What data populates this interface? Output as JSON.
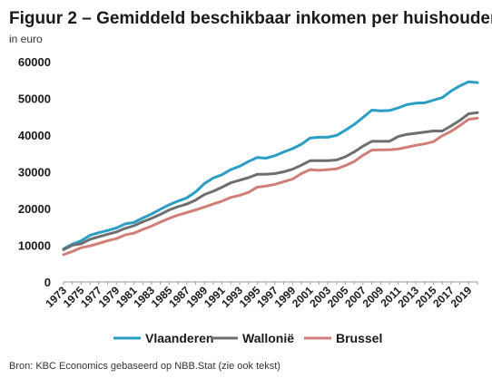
{
  "figure": {
    "title": "Figuur 2 – Gemiddeld beschikbaar inkomen per huishouden",
    "subtitle": "in euro",
    "source": "Bron: KBC Economics gebaseerd op NBB.Stat (zie ook tekst)"
  },
  "chart_data": {
    "type": "line",
    "title": "Figuur 2 – Gemiddeld beschikbaar inkomen per huishouden",
    "subtitle": "in euro",
    "xlabel": "",
    "ylabel": "",
    "x": [
      1973,
      1974,
      1975,
      1976,
      1977,
      1978,
      1979,
      1980,
      1981,
      1982,
      1983,
      1984,
      1985,
      1986,
      1987,
      1988,
      1989,
      1990,
      1991,
      1992,
      1993,
      1994,
      1995,
      1996,
      1997,
      1998,
      1999,
      2000,
      2001,
      2002,
      2003,
      2004,
      2005,
      2006,
      2007,
      2008,
      2009,
      2010,
      2011,
      2012,
      2013,
      2014,
      2015,
      2016,
      2017,
      2018,
      2019,
      2020
    ],
    "x_tick_labels": [
      "1973",
      "1975",
      "1977",
      "1979",
      "1981",
      "1983",
      "1985",
      "1987",
      "1989",
      "1991",
      "1993",
      "1995",
      "1997",
      "1999",
      "2001",
      "2003",
      "2005",
      "2007",
      "2009",
      "2011",
      "2013",
      "2015",
      "2017",
      "2019"
    ],
    "ylim": [
      0,
      60000
    ],
    "y_ticks": [
      0,
      10000,
      20000,
      30000,
      40000,
      50000,
      60000
    ],
    "y_tick_labels": [
      "0",
      "10000",
      "20000",
      "30000",
      "40000",
      "50000",
      "60000"
    ],
    "grid": false,
    "legend_position": "bottom",
    "series": [
      {
        "name": "Vlaanderen",
        "color": "#2a9ec4",
        "values": [
          9000,
          10300,
          11200,
          12700,
          13400,
          14000,
          14700,
          15800,
          16200,
          17400,
          18500,
          19800,
          21000,
          22000,
          22900,
          24500,
          26800,
          28300,
          29200,
          30600,
          31500,
          32800,
          33900,
          33700,
          34400,
          35400,
          36300,
          37500,
          39200,
          39400,
          39400,
          39900,
          41300,
          42900,
          44800,
          46800,
          46600,
          46700,
          47400,
          48300,
          48700,
          48800,
          49500,
          50200,
          52000,
          53400,
          54500,
          54300
        ]
      },
      {
        "name": "Wallonië",
        "color": "#6d6e70",
        "values": [
          8800,
          10000,
          10400,
          11600,
          12300,
          13000,
          13600,
          14600,
          15300,
          16400,
          17300,
          18400,
          19600,
          20500,
          21200,
          22300,
          23800,
          24700,
          25800,
          27000,
          27700,
          28400,
          29300,
          29300,
          29500,
          30000,
          30700,
          31800,
          33000,
          33000,
          33000,
          33200,
          34100,
          35400,
          37000,
          38300,
          38300,
          38300,
          39600,
          40200,
          40500,
          40800,
          41100,
          41100,
          42500,
          44000,
          45800,
          46100
        ]
      },
      {
        "name": "Brussel",
        "color": "#d17e78",
        "values": [
          7400,
          8300,
          9300,
          9800,
          10500,
          11200,
          11800,
          12800,
          13300,
          14300,
          15200,
          16300,
          17300,
          18200,
          18900,
          19600,
          20400,
          21200,
          22000,
          23000,
          23600,
          24400,
          25800,
          26100,
          26600,
          27300,
          28000,
          29500,
          30600,
          30400,
          30600,
          30800,
          31700,
          32800,
          34500,
          35900,
          36000,
          36000,
          36200,
          36700,
          37200,
          37600,
          38200,
          39800,
          41000,
          42600,
          44300,
          44600
        ]
      }
    ]
  }
}
